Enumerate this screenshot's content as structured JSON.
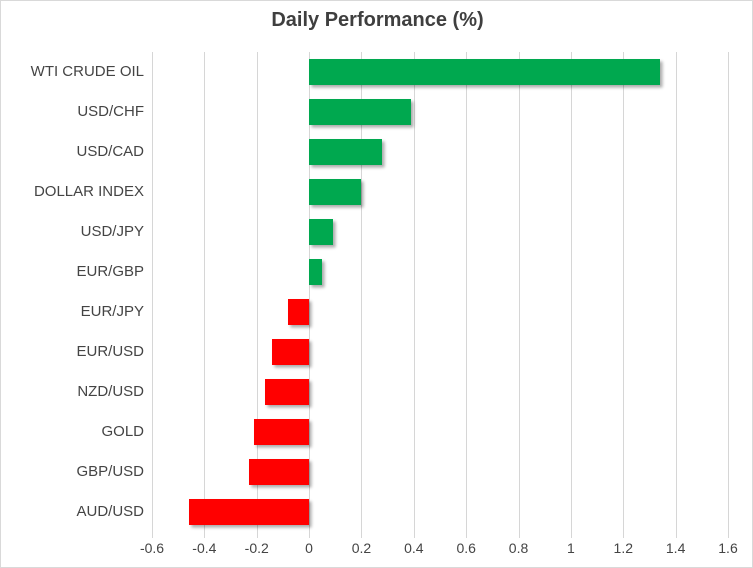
{
  "chart_data": {
    "type": "bar",
    "orientation": "horizontal",
    "title": "Daily Performance (%)",
    "categories": [
      "WTI CRUDE OIL",
      "USD/CHF",
      "USD/CAD",
      "DOLLAR INDEX",
      "USD/JPY",
      "EUR/GBP",
      "EUR/JPY",
      "EUR/USD",
      "NZD/USD",
      "GOLD",
      "GBP/USD",
      "AUD/USD"
    ],
    "values": [
      1.34,
      0.39,
      0.28,
      0.2,
      0.09,
      0.05,
      -0.08,
      -0.14,
      -0.17,
      -0.21,
      -0.23,
      -0.46
    ],
    "xlabel": "",
    "ylabel": "",
    "xlim": [
      -0.6,
      1.6
    ],
    "x_tick_values": [
      -0.6,
      -0.4,
      -0.2,
      0,
      0.2,
      0.4,
      0.6,
      0.8,
      1,
      1.2,
      1.4,
      1.6
    ],
    "x_tick_labels": [
      "-0.6",
      "-0.4",
      "-0.2",
      "0",
      "0.2",
      "0.4",
      "0.6",
      "0.8",
      "1",
      "1.2",
      "1.4",
      "1.6"
    ],
    "grid": "vertical",
    "legend": "none",
    "positive_color": "#00A84F",
    "negative_color": "#FF0000",
    "gridline_color": "#D6D6D6",
    "text_color": "#444444",
    "title_color": "#3F3F3F"
  }
}
